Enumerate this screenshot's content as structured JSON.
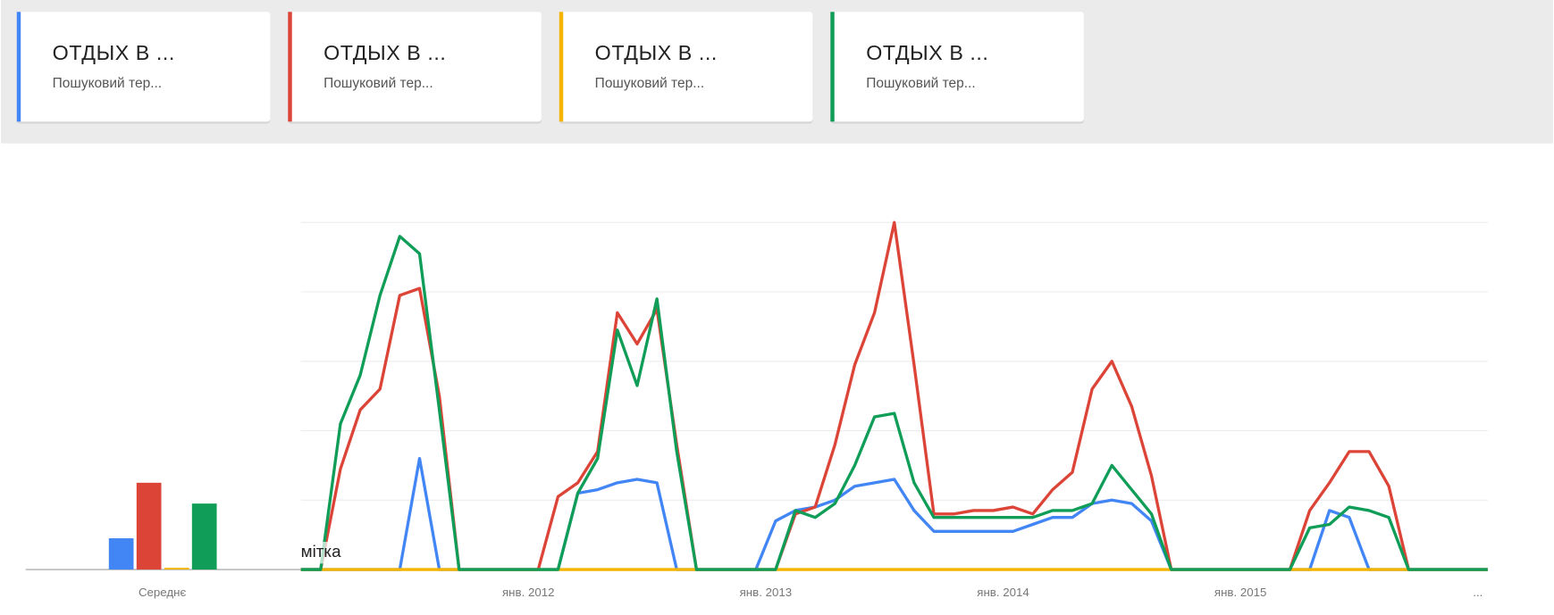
{
  "cards": [
    {
      "title": "ОТДЫХ В ...",
      "subtitle": "Пошуковий тер..."
    },
    {
      "title": "ОТДЫХ В ...",
      "subtitle": "Пошуковий тер..."
    },
    {
      "title": "ОТДЫХ В ...",
      "subtitle": "Пошуковий тер..."
    },
    {
      "title": "ОТДЫХ В ...",
      "subtitle": "Пошуковий тер..."
    }
  ],
  "chart_data": [
    {
      "type": "line",
      "annotation": "мітка",
      "categories": [
        null,
        null,
        null,
        null,
        null,
        null,
        null,
        null,
        null,
        null,
        null,
        null,
        "янв. 2012",
        null,
        null,
        null,
        null,
        null,
        null,
        null,
        null,
        null,
        null,
        null,
        "янв. 2013",
        null,
        null,
        null,
        null,
        null,
        null,
        null,
        null,
        null,
        null,
        null,
        "янв. 2014",
        null,
        null,
        null,
        null,
        null,
        null,
        null,
        null,
        null,
        null,
        null,
        "янв. 2015",
        null,
        null,
        null,
        null,
        null,
        null,
        null,
        null,
        null,
        null,
        null,
        "..."
      ],
      "ylim": [
        0,
        100
      ],
      "yticks": [
        0,
        20,
        40,
        60,
        80,
        100
      ],
      "grid": true,
      "series": [
        {
          "name": "ОТДЫХ В ...",
          "color": "#4285f4",
          "values": [
            0,
            0,
            0,
            0,
            0,
            0,
            32,
            0,
            0,
            0,
            0,
            0,
            0,
            0,
            22,
            23,
            25,
            26,
            25,
            0,
            0,
            0,
            0,
            0,
            14,
            17,
            18,
            20,
            24,
            25,
            26,
            17,
            11,
            11,
            11,
            11,
            11,
            13,
            15,
            15,
            19,
            20,
            19,
            14,
            0,
            0,
            0,
            0,
            0,
            0,
            0,
            0,
            17,
            15,
            0,
            0,
            0,
            0,
            0,
            0,
            0
          ]
        },
        {
          "name": "ОТДЫХ В ...",
          "color": "#db4437",
          "values": [
            0,
            0,
            29,
            46,
            52,
            79,
            81,
            50,
            0,
            0,
            0,
            0,
            0,
            21,
            25,
            34,
            74,
            65,
            75,
            36,
            0,
            0,
            0,
            0,
            0,
            16,
            18,
            36,
            59,
            74,
            100,
            59,
            16,
            16,
            17,
            17,
            18,
            16,
            23,
            28,
            52,
            60,
            47,
            27,
            0,
            0,
            0,
            0,
            0,
            0,
            0,
            17,
            25,
            34,
            34,
            24,
            0,
            0,
            0,
            0,
            0
          ]
        },
        {
          "name": "ОТДЫХ В ...",
          "color": "#f4b400",
          "values": [
            0,
            0,
            0,
            0,
            0,
            0,
            0,
            0,
            0,
            0,
            0,
            0,
            0,
            0,
            0,
            0,
            0,
            0,
            0,
            0,
            0,
            0,
            0,
            0,
            0,
            0,
            0,
            0,
            0,
            0,
            0,
            0,
            0,
            0,
            0,
            0,
            0,
            0,
            0,
            0,
            0,
            0,
            0,
            0,
            0,
            0,
            0,
            0,
            0,
            0,
            0,
            0,
            0,
            0,
            0,
            0,
            0,
            0,
            0,
            0,
            0
          ]
        },
        {
          "name": "ОТДЫХ В ...",
          "color": "#0f9d58",
          "values": [
            0,
            0,
            42,
            56,
            79,
            96,
            91,
            46,
            0,
            0,
            0,
            0,
            0,
            0,
            22,
            32,
            69,
            53,
            78,
            34,
            0,
            0,
            0,
            0,
            0,
            17,
            15,
            19,
            30,
            44,
            45,
            25,
            15,
            15,
            15,
            15,
            15,
            15,
            17,
            17,
            19,
            30,
            23,
            16,
            0,
            0,
            0,
            0,
            0,
            0,
            0,
            12,
            13,
            18,
            17,
            15,
            0,
            0,
            0,
            0,
            0
          ]
        }
      ]
    },
    {
      "type": "bar",
      "categories": [
        "Середнє"
      ],
      "ylim": [
        0,
        100
      ],
      "series": [
        {
          "color": "#4285f4",
          "values": [
            9
          ]
        },
        {
          "color": "#db4437",
          "values": [
            25
          ]
        },
        {
          "color": "#f4b400",
          "values": [
            0.5
          ]
        },
        {
          "color": "#0f9d58",
          "values": [
            19
          ]
        }
      ]
    }
  ]
}
